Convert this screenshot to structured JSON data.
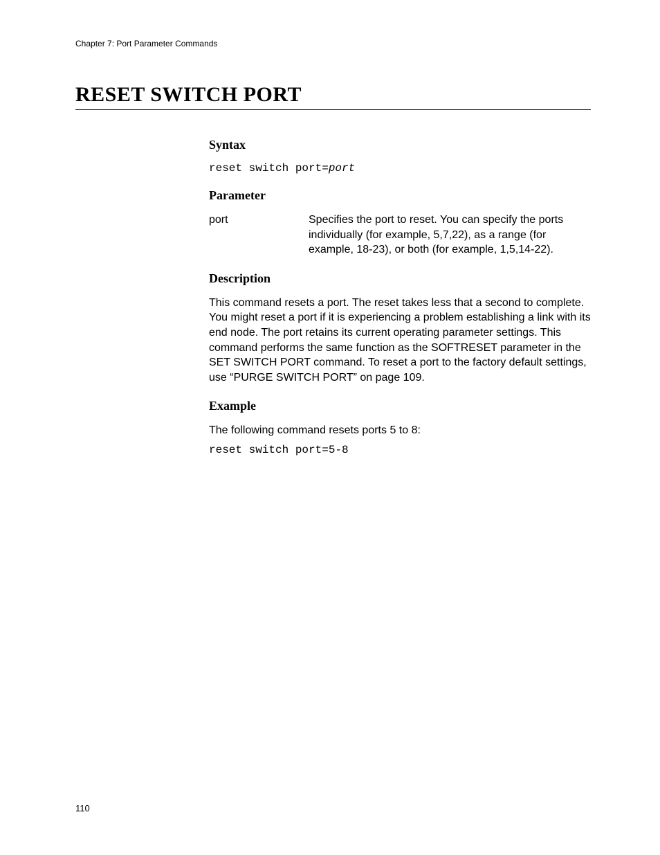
{
  "header": {
    "running_head": "Chapter 7: Port Parameter Commands"
  },
  "title": "RESET SWITCH PORT",
  "sections": {
    "syntax": {
      "heading": "Syntax",
      "command_prefix": "reset switch port=",
      "command_var": "port"
    },
    "parameter": {
      "heading": "Parameter",
      "name": "port",
      "desc": "Specifies the port to reset. You can specify the ports individually (for example, 5,7,22), as a range (for example, 18-23), or both (for example, 1,5,14-22)."
    },
    "description": {
      "heading": "Description",
      "text": "This command resets a port. The reset takes less that a second to complete. You might reset a port if it is experiencing a problem establishing a link with its end node. The port retains its current operating parameter settings. This command performs the same function as the SOFTRESET parameter in the SET SWITCH PORT command. To reset a port to the factory default settings, use “PURGE SWITCH PORT” on page 109."
    },
    "example": {
      "heading": "Example",
      "intro": "The following command resets ports 5 to 8:",
      "code": "reset switch port=5-8"
    }
  },
  "footer": {
    "page_number": "110"
  }
}
